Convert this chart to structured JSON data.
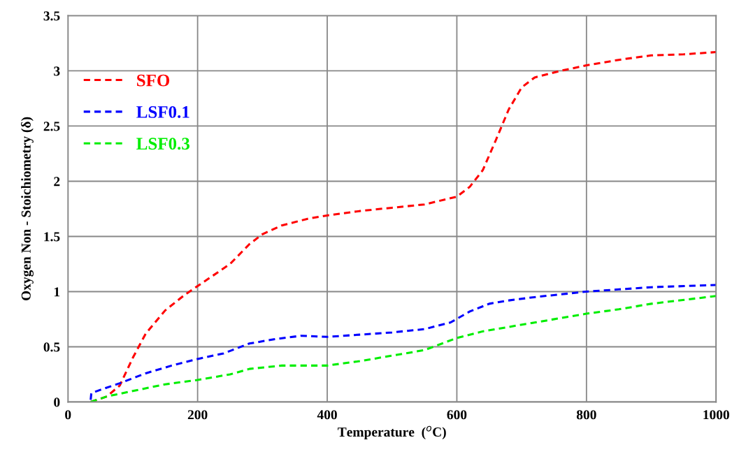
{
  "chart_data": {
    "type": "line",
    "xlabel": "Temperature  ($^{o}$C)",
    "ylabel": "Oxygen Non - Stoichiometry (δ)",
    "xlim": [
      0,
      1000
    ],
    "xticks": [
      0,
      200,
      400,
      600,
      800,
      1000
    ],
    "ylim": [
      0,
      3.5
    ],
    "yticks": [
      0,
      0.5,
      1,
      1.5,
      2,
      2.5,
      3,
      3.5
    ],
    "grid": true,
    "legend": "top left",
    "line_style": "dashed",
    "marker": "none",
    "series": [
      {
        "name": "SFO",
        "color": "#ff0000",
        "x": [
          35,
          60,
          80,
          100,
          120,
          150,
          180,
          200,
          250,
          280,
          300,
          330,
          370,
          400,
          450,
          500,
          550,
          600,
          620,
          640,
          660,
          680,
          700,
          720,
          760,
          800,
          850,
          900,
          950,
          1000
        ],
        "values": [
          0,
          0.05,
          0.15,
          0.4,
          0.62,
          0.83,
          0.97,
          1.05,
          1.25,
          1.43,
          1.52,
          1.6,
          1.66,
          1.69,
          1.73,
          1.76,
          1.79,
          1.86,
          1.95,
          2.1,
          2.37,
          2.65,
          2.85,
          2.94,
          3.0,
          3.05,
          3.1,
          3.14,
          3.15,
          3.17
        ]
      },
      {
        "name": "LSF0.1",
        "color": "#0000ff",
        "x": [
          35,
          36,
          50,
          80,
          120,
          160,
          200,
          240,
          280,
          320,
          360,
          400,
          450,
          500,
          550,
          590,
          620,
          650,
          680,
          720,
          800,
          850,
          900,
          1000
        ],
        "values": [
          0.02,
          0.08,
          0.11,
          0.17,
          0.26,
          0.33,
          0.39,
          0.44,
          0.53,
          0.57,
          0.6,
          0.59,
          0.61,
          0.63,
          0.66,
          0.72,
          0.82,
          0.89,
          0.92,
          0.95,
          1.0,
          1.02,
          1.04,
          1.06
        ]
      },
      {
        "name": "LSF0.3",
        "color": "#00ee00",
        "x": [
          35,
          60,
          100,
          150,
          200,
          250,
          280,
          330,
          380,
          400,
          450,
          500,
          550,
          600,
          640,
          680,
          720,
          800,
          850,
          900,
          1000
        ],
        "values": [
          0,
          0.05,
          0.1,
          0.16,
          0.2,
          0.25,
          0.3,
          0.33,
          0.33,
          0.33,
          0.37,
          0.42,
          0.47,
          0.58,
          0.64,
          0.68,
          0.72,
          0.8,
          0.84,
          0.89,
          0.96
        ]
      }
    ]
  }
}
